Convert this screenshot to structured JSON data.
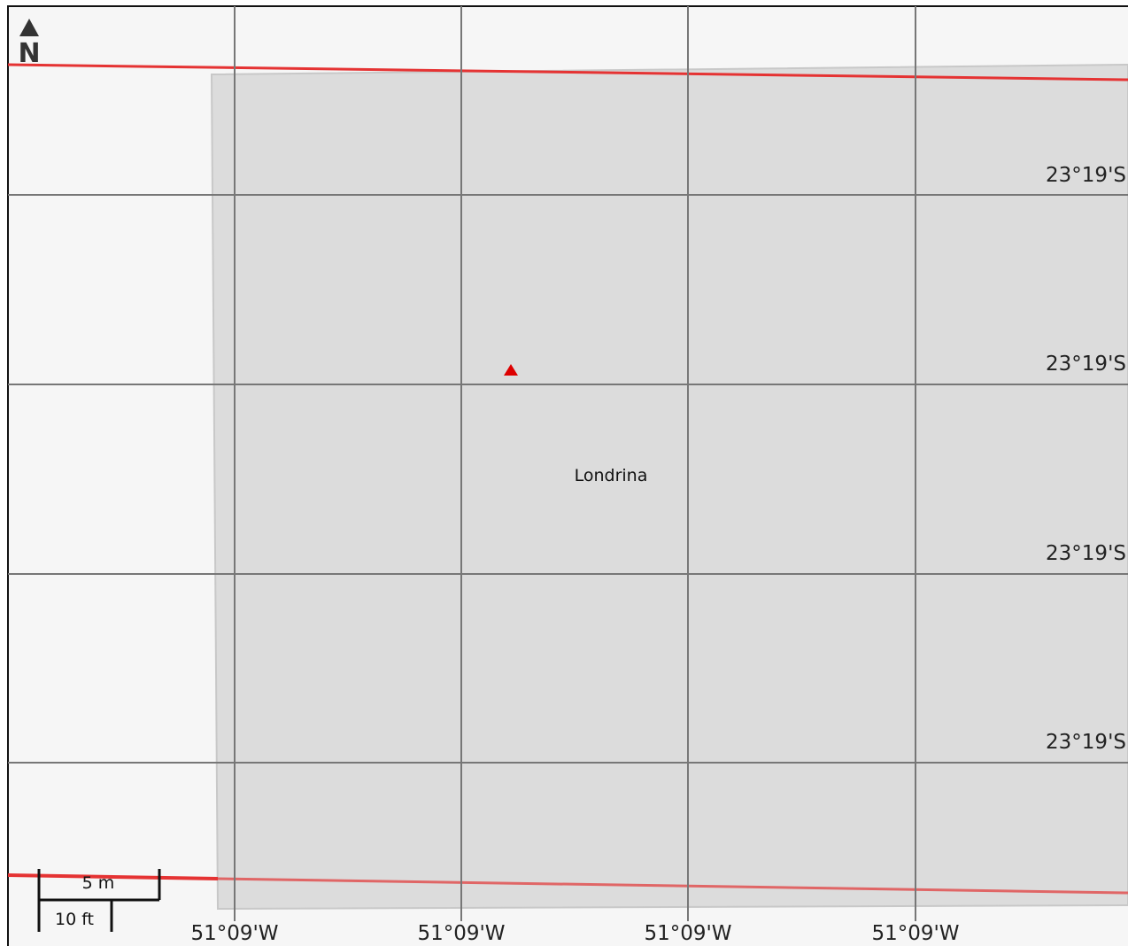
{
  "map": {
    "place_label": "Londrina",
    "north_label": "N",
    "latitude_labels": [
      "23°19'S",
      "23°19'S",
      "23°19'S",
      "23°19'S"
    ],
    "longitude_labels": [
      "51°09'W",
      "51°09'W",
      "51°09'W",
      "51°09'W"
    ],
    "scale": {
      "metric_label": "5 m",
      "imperial_label": "10 ft"
    },
    "colors": {
      "background": "#f6f6f6",
      "area_fill": "#dcdcdc",
      "boundary_line": "#e53333",
      "grid_line": "#777777",
      "marker": "#dd0000"
    },
    "icons": {
      "north_arrow": "north-arrow-icon",
      "point_marker": "triangle-marker-icon"
    }
  }
}
